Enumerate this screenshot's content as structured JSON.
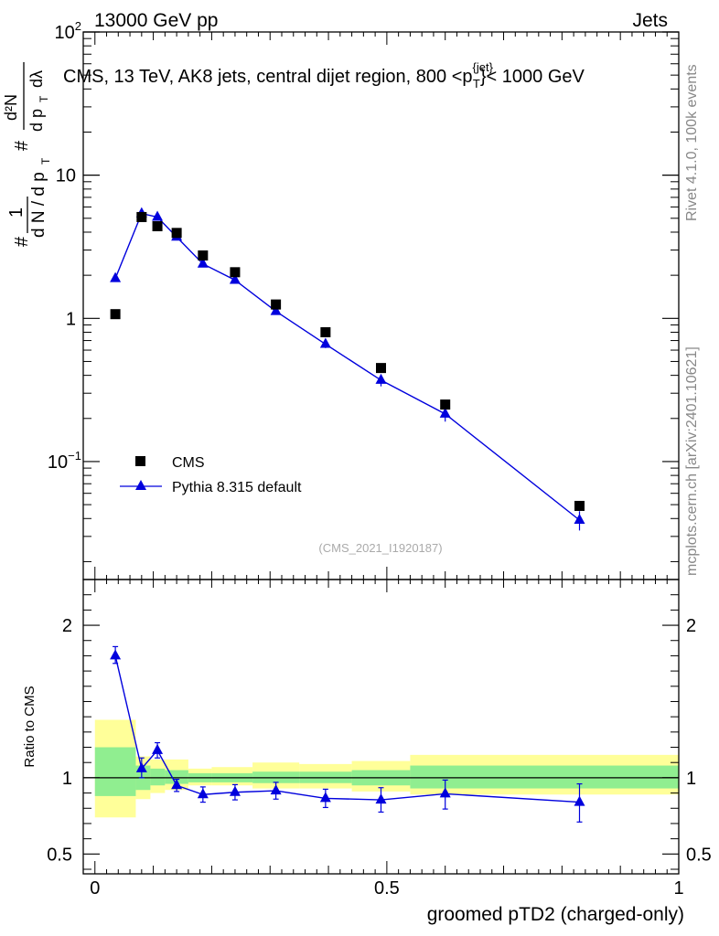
{
  "header": {
    "beam": "13000 GeV pp",
    "category": "Jets"
  },
  "side_labels": {
    "rivet": "Rivet 4.1.0,  100k events",
    "source": "mcplots.cern.ch [arXiv:2401.10621]"
  },
  "chart_data": [
    {
      "type": "scatter",
      "title": "CMS, 13 TeV, AK8 jets, central dijet region, 800 <p",
      "title_sup": "{jet}",
      "title_sub": "T",
      "title_suffix": "}< 1000 GeV",
      "ylabel": "# 1/dN/dpT # d²N/dpT dλ",
      "yscale": "log",
      "ylim": [
        0.015,
        100
      ],
      "xlim": [
        -0.02,
        1.0
      ],
      "y_ticks": [
        {
          "value": 0.1,
          "label": "10",
          "sup": "−1"
        },
        {
          "value": 1,
          "label": "1",
          "sup": ""
        },
        {
          "value": 10,
          "label": "10",
          "sup": ""
        },
        {
          "value": 100,
          "label": "10",
          "sup": "2"
        }
      ],
      "analysis_tag": "(CMS_2021_I1920187)",
      "legend": [
        {
          "name": "CMS",
          "marker": "square",
          "color": "#000000"
        },
        {
          "name": "Pythia 8.315 default",
          "marker": "triangle",
          "color": "#0000dd"
        }
      ],
      "bin_edges": [
        0.0,
        0.07,
        0.095,
        0.12,
        0.16,
        0.2,
        0.27,
        0.35,
        0.44,
        0.54,
        0.66,
        1.0
      ],
      "series": [
        {
          "name": "CMS",
          "x": [
            0.035,
            0.08,
            0.107,
            0.14,
            0.185,
            0.24,
            0.31,
            0.395,
            0.49,
            0.6,
            0.83
          ],
          "values": [
            1.07,
            5.1,
            4.4,
            3.95,
            2.75,
            2.1,
            1.25,
            0.8,
            0.45,
            0.25,
            0.049
          ]
        },
        {
          "name": "Pythia 8.315 default",
          "x": [
            0.035,
            0.08,
            0.107,
            0.14,
            0.185,
            0.24,
            0.31,
            0.395,
            0.49,
            0.6,
            0.83
          ],
          "values": [
            1.9,
            5.4,
            5.1,
            3.7,
            2.4,
            1.85,
            1.12,
            0.66,
            0.37,
            0.215,
            0.039
          ],
          "errors": [
            0.05,
            0.15,
            0.15,
            0.1,
            0.08,
            0.06,
            0.04,
            0.04,
            0.035,
            0.025,
            0.006
          ]
        }
      ]
    },
    {
      "type": "scatter",
      "ylabel": "Ratio to CMS",
      "xlabel": "groomed pTD2 (charged-only)",
      "xlim": [
        -0.02,
        1.0
      ],
      "ylim": [
        0.37,
        2.3
      ],
      "y_ticks": [
        {
          "value": 0.5,
          "label": "0.5"
        },
        {
          "value": 1,
          "label": "1"
        },
        {
          "value": 2,
          "label": "2"
        }
      ],
      "x_ticks": [
        {
          "value": 0,
          "label": "0"
        },
        {
          "value": 0.5,
          "label": "0.5"
        },
        {
          "value": 1,
          "label": "1"
        }
      ],
      "bands": {
        "green_color": "#90ee90",
        "yellow_color": "#ffff99",
        "bins": [
          {
            "x0": 0.0,
            "x1": 0.07,
            "g_lo": 0.88,
            "g_hi": 1.2,
            "y_lo": 0.74,
            "y_hi": 1.38
          },
          {
            "x0": 0.07,
            "x1": 0.095,
            "g_lo": 0.92,
            "g_hi": 1.08,
            "y_lo": 0.86,
            "y_hi": 1.14
          },
          {
            "x0": 0.095,
            "x1": 0.12,
            "g_lo": 0.95,
            "g_hi": 1.06,
            "y_lo": 0.9,
            "y_hi": 1.12
          },
          {
            "x0": 0.12,
            "x1": 0.16,
            "g_lo": 0.96,
            "g_hi": 1.05,
            "y_lo": 0.92,
            "y_hi": 1.12
          },
          {
            "x0": 0.16,
            "x1": 0.2,
            "g_lo": 0.97,
            "g_hi": 1.03,
            "y_lo": 0.95,
            "y_hi": 1.06
          },
          {
            "x0": 0.2,
            "x1": 0.27,
            "g_lo": 0.97,
            "g_hi": 1.03,
            "y_lo": 0.95,
            "y_hi": 1.07
          },
          {
            "x0": 0.27,
            "x1": 0.35,
            "g_lo": 0.965,
            "g_hi": 1.04,
            "y_lo": 0.93,
            "y_hi": 1.1
          },
          {
            "x0": 0.35,
            "x1": 0.44,
            "g_lo": 0.965,
            "g_hi": 1.04,
            "y_lo": 0.93,
            "y_hi": 1.09
          },
          {
            "x0": 0.44,
            "x1": 0.54,
            "g_lo": 0.95,
            "g_hi": 1.05,
            "y_lo": 0.91,
            "y_hi": 1.11
          },
          {
            "x0": 0.54,
            "x1": 0.66,
            "g_lo": 0.93,
            "g_hi": 1.08,
            "y_lo": 0.89,
            "y_hi": 1.15
          },
          {
            "x0": 0.66,
            "x1": 1.0,
            "g_lo": 0.93,
            "g_hi": 1.08,
            "y_lo": 0.89,
            "y_hi": 1.15
          }
        ]
      },
      "series": [
        {
          "name": "Pythia 8.315 default / CMS",
          "x": [
            0.035,
            0.08,
            0.107,
            0.14,
            0.185,
            0.24,
            0.31,
            0.395,
            0.49,
            0.6,
            0.83
          ],
          "values": [
            1.8,
            1.06,
            1.18,
            0.95,
            0.89,
            0.905,
            0.915,
            0.865,
            0.855,
            0.895,
            0.84
          ],
          "err_lo": [
            0.05,
            0.06,
            0.05,
            0.04,
            0.05,
            0.05,
            0.055,
            0.06,
            0.08,
            0.1,
            0.13
          ],
          "err_hi": [
            0.06,
            0.07,
            0.05,
            0.04,
            0.05,
            0.05,
            0.055,
            0.06,
            0.08,
            0.09,
            0.12
          ]
        }
      ]
    }
  ]
}
